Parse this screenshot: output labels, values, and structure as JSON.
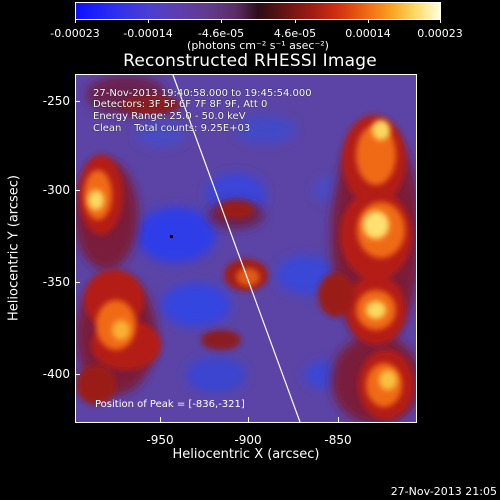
{
  "colorbar": {
    "ticks": [
      "-0.00023",
      "-0.00014",
      "-4.6e-05",
      "4.6e-05",
      "0.00014",
      "0.00023"
    ],
    "units": "(photons cm⁻² s⁻¹ asec⁻²)"
  },
  "title": "Reconstructed RHESSI Image",
  "info": {
    "time_range": "27-Nov-2013 19:40:58.000 to 19:45:54.000",
    "detectors": "Detectors: 3F 5F 6F 7F 8F 9F, Att 0",
    "energy": "Energy Range: 25.0 - 50.0 keV",
    "clean": "Clean    Total counts: 9.25E+03"
  },
  "peak": "Position of Peak = [-836,-321]",
  "axes": {
    "xlabel": "Heliocentric X (arcsec)",
    "ylabel": "Heliocentric Y (arcsec)",
    "xticks": [
      "-950",
      "-900",
      "-850"
    ],
    "yticks": [
      "-250",
      "-300",
      "-350",
      "-400"
    ]
  },
  "footer": "27-Nov-2013 21:05",
  "colors": {
    "negative": "#1a1aff",
    "background": "#5a3f9c",
    "positive_low": "#b01c10",
    "positive_high": "#ffe060"
  }
}
